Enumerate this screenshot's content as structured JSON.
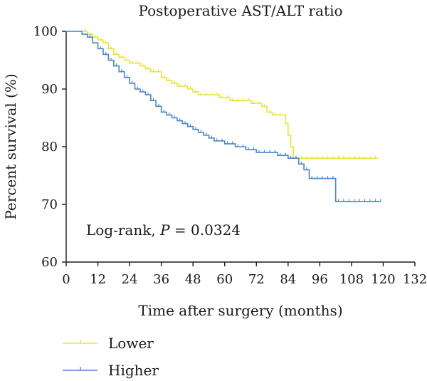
{
  "chart_data": {
    "type": "line",
    "subtype": "kaplan-meier",
    "title": "Postoperative AST/ALT ratio",
    "xlabel": "Time after surgery (months)",
    "ylabel": "Percent survival (%)",
    "xlim": [
      0,
      132
    ],
    "ylim": [
      60,
      100
    ],
    "xticks": [
      0,
      12,
      24,
      36,
      48,
      60,
      72,
      84,
      96,
      108,
      120,
      132
    ],
    "yticks": [
      60,
      70,
      80,
      90,
      100
    ],
    "grid": false,
    "legend_position": "bottom-left",
    "annotation": {
      "prefix": "Log-rank, ",
      "p_symbol": "P",
      "suffix": " = 0.0324"
    },
    "series": [
      {
        "name": "Lower",
        "color": "#e8e33a",
        "steps": [
          [
            0,
            100
          ],
          [
            8,
            99.5
          ],
          [
            10,
            99
          ],
          [
            12,
            98.5
          ],
          [
            14,
            98
          ],
          [
            16,
            97
          ],
          [
            18,
            96
          ],
          [
            20,
            95.5
          ],
          [
            22,
            95
          ],
          [
            24,
            94.5
          ],
          [
            28,
            94
          ],
          [
            30,
            93.5
          ],
          [
            32,
            93
          ],
          [
            36,
            92
          ],
          [
            38,
            91.5
          ],
          [
            40,
            91
          ],
          [
            42,
            90.5
          ],
          [
            46,
            90
          ],
          [
            48,
            89.5
          ],
          [
            50,
            89
          ],
          [
            58,
            88.5
          ],
          [
            62,
            88
          ],
          [
            70,
            87.5
          ],
          [
            74,
            87
          ],
          [
            76,
            86
          ],
          [
            78,
            85.5
          ],
          [
            83,
            84
          ],
          [
            84,
            82
          ],
          [
            85,
            80
          ],
          [
            86,
            78
          ],
          [
            118,
            78
          ]
        ],
        "censor": [
          7,
          8,
          9,
          11,
          13,
          15,
          17,
          19,
          21,
          23,
          25,
          27,
          29,
          31,
          33,
          35,
          37,
          39,
          41,
          43,
          45,
          47,
          49,
          51,
          53,
          55,
          57,
          59,
          61,
          63,
          65,
          67,
          69,
          71,
          73,
          75,
          77,
          79,
          81,
          87,
          89,
          91,
          93,
          95,
          97,
          99,
          101,
          103,
          105,
          107,
          109,
          111,
          113,
          115,
          117
        ]
      },
      {
        "name": "Higher",
        "color": "#4a86c5",
        "steps": [
          [
            0,
            100
          ],
          [
            6,
            99.5
          ],
          [
            8,
            99
          ],
          [
            10,
            98
          ],
          [
            12,
            97
          ],
          [
            14,
            96
          ],
          [
            16,
            95
          ],
          [
            18,
            94
          ],
          [
            20,
            93
          ],
          [
            22,
            92
          ],
          [
            24,
            91
          ],
          [
            26,
            90
          ],
          [
            28,
            89.5
          ],
          [
            30,
            89
          ],
          [
            32,
            88
          ],
          [
            34,
            87
          ],
          [
            36,
            86
          ],
          [
            38,
            85.5
          ],
          [
            40,
            85
          ],
          [
            42,
            84.5
          ],
          [
            44,
            84
          ],
          [
            46,
            83.5
          ],
          [
            48,
            83
          ],
          [
            50,
            82.5
          ],
          [
            52,
            82
          ],
          [
            54,
            81.5
          ],
          [
            56,
            81
          ],
          [
            60,
            80.5
          ],
          [
            64,
            80
          ],
          [
            68,
            79.5
          ],
          [
            72,
            79
          ],
          [
            80,
            78.5
          ],
          [
            84,
            78
          ],
          [
            88,
            77
          ],
          [
            90,
            76
          ],
          [
            92,
            74.5
          ],
          [
            102,
            70.5
          ],
          [
            119,
            70.5
          ]
        ],
        "censor": [
          9,
          13,
          15,
          17,
          19,
          21,
          23,
          25,
          27,
          29,
          31,
          33,
          35,
          37,
          39,
          41,
          43,
          45,
          47,
          49,
          51,
          53,
          55,
          57,
          59,
          61,
          63,
          65,
          67,
          69,
          71,
          73,
          75,
          77,
          79,
          81,
          83,
          85,
          87,
          89,
          91,
          93,
          95,
          97,
          99,
          101,
          103,
          105,
          107,
          109,
          111,
          113,
          115,
          117,
          119
        ]
      }
    ]
  }
}
